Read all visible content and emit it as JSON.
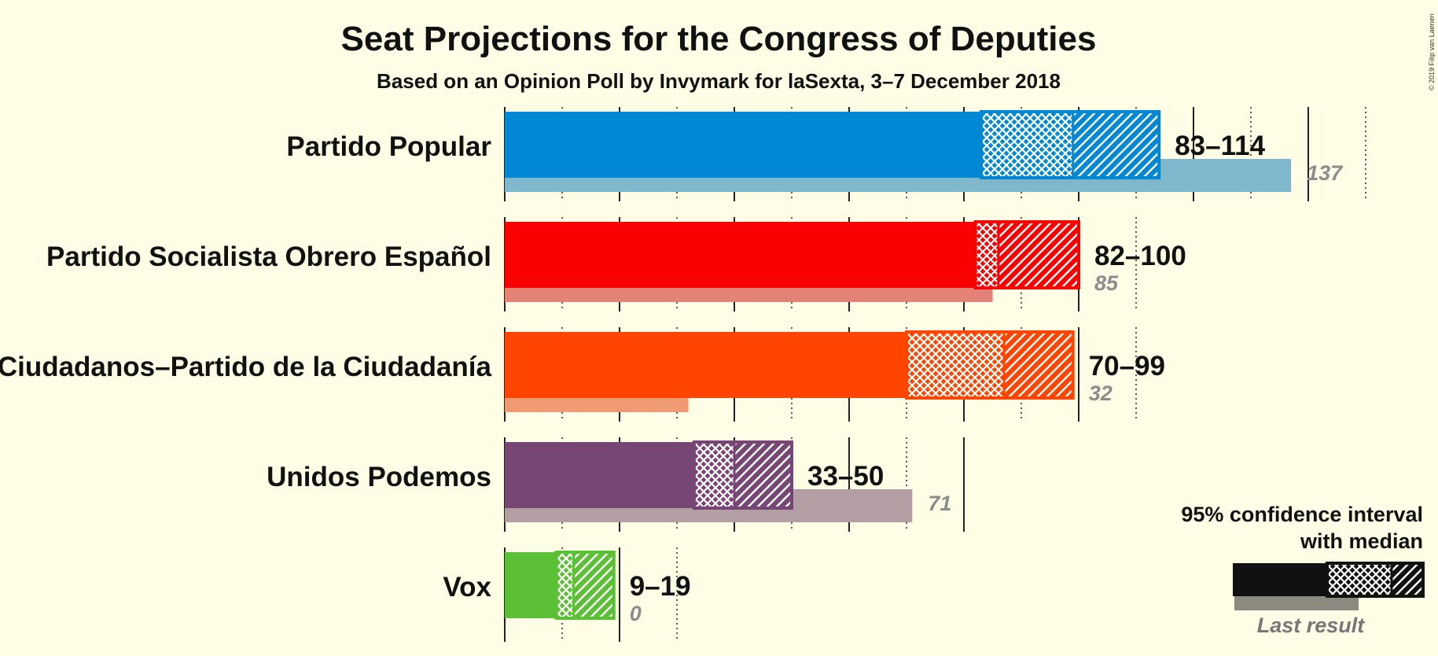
{
  "chart_data": {
    "type": "bar",
    "title": "Seat Projections for the Congress of Deputies",
    "subtitle": "Based on an Opinion Poll by Invymark for laSexta, 3–7 December 2018",
    "copyright": "© 2019 Filip van Laenen",
    "xlim": [
      0,
      140
    ],
    "grid": true,
    "legend_position": "bottom-right",
    "series": [
      {
        "name": "Partido Popular",
        "low": 83,
        "median": 99,
        "high": 114,
        "last": 137,
        "range_label": "83–114",
        "last_label": "137",
        "color": "#0088d5",
        "last_color": "#7fb7cc"
      },
      {
        "name": "Partido Socialista Obrero Español",
        "low": 82,
        "median": 86,
        "high": 100,
        "last": 85,
        "range_label": "82–100",
        "last_label": "85",
        "color": "#fa0000",
        "last_color": "#e58277"
      },
      {
        "name": "Ciudadanos–Partido de la Ciudadanía",
        "low": 70,
        "median": 87,
        "high": 99,
        "last": 32,
        "range_label": "70–99",
        "last_label": "32",
        "color": "#ff4500",
        "last_color": "#ef9a73"
      },
      {
        "name": "Unidos Podemos",
        "low": 33,
        "median": 40,
        "high": 50,
        "last": 71,
        "range_label": "33–50",
        "last_label": "71",
        "color": "#774675",
        "last_color": "#b39fa3"
      },
      {
        "name": "Vox",
        "low": 9,
        "median": 12,
        "high": 19,
        "last": 0,
        "range_label": "9–19",
        "last_label": "0",
        "color": "#5bc035",
        "last_color": "#aade96"
      }
    ]
  },
  "legend": {
    "line1": "95% confidence interval",
    "line2": "with median",
    "last_result": "Last result"
  }
}
